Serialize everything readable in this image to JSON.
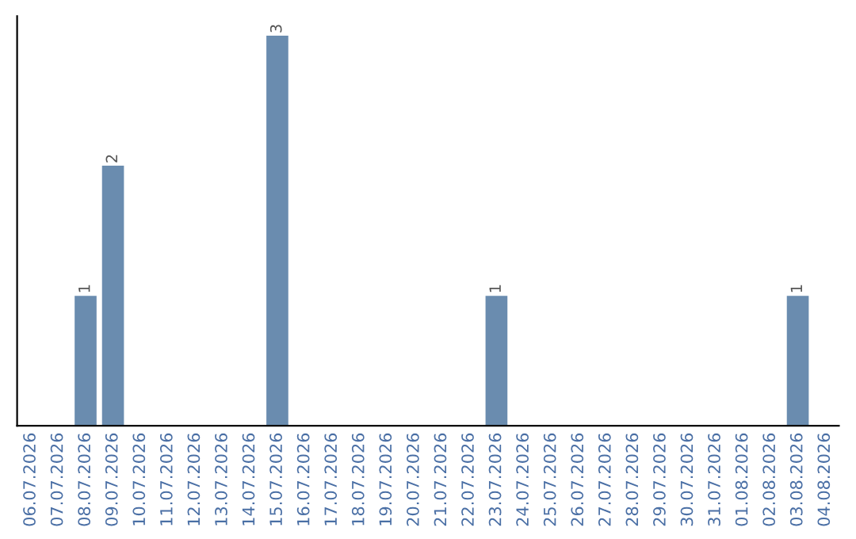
{
  "chart_data": {
    "type": "bar",
    "categories": [
      "06.07.2026",
      "07.07.2026",
      "08.07.2026",
      "09.07.2026",
      "10.07.2026",
      "11.07.2026",
      "12.07.2026",
      "13.07.2026",
      "14.07.2026",
      "15.07.2026",
      "16.07.2026",
      "17.07.2026",
      "18.07.2026",
      "19.07.2026",
      "20.07.2026",
      "21.07.2026",
      "22.07.2026",
      "23.07.2026",
      "24.07.2026",
      "25.07.2026",
      "26.07.2026",
      "27.07.2026",
      "28.07.2026",
      "29.07.2026",
      "30.07.2026",
      "31.07.2026",
      "01.08.2026",
      "02.08.2026",
      "03.08.2026",
      "04.08.2026"
    ],
    "values": [
      0,
      0,
      1,
      2,
      0,
      0,
      0,
      0,
      0,
      3,
      0,
      0,
      0,
      0,
      0,
      0,
      0,
      1,
      0,
      0,
      0,
      0,
      0,
      0,
      0,
      0,
      0,
      0,
      1,
      0
    ],
    "value_labels": [
      null,
      null,
      "1",
      "2",
      null,
      null,
      null,
      null,
      null,
      "3",
      null,
      null,
      null,
      null,
      null,
      null,
      null,
      "1",
      null,
      null,
      null,
      null,
      null,
      null,
      null,
      null,
      null,
      null,
      "1",
      null
    ],
    "color": "#6a8caf",
    "grid": false,
    "legend": false
  }
}
